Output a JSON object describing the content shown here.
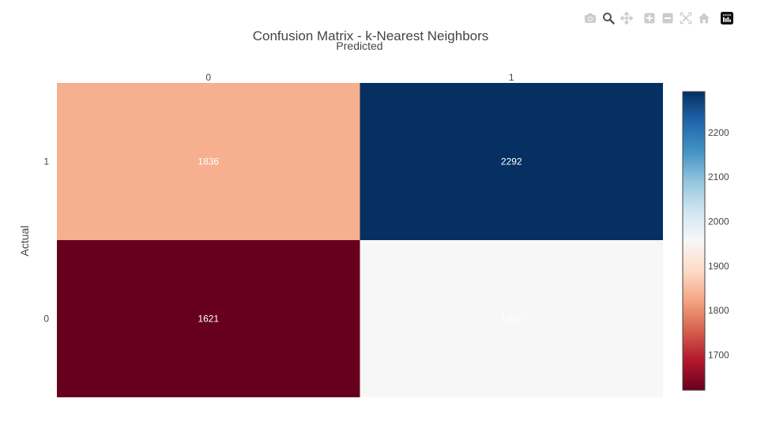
{
  "modebar": {
    "buttons": [
      {
        "name": "camera-icon"
      },
      {
        "name": "zoom-icon"
      },
      {
        "name": "pan-icon"
      },
      {
        "name": "zoom-in-icon"
      },
      {
        "name": "zoom-out-icon"
      },
      {
        "name": "autoscale-icon"
      },
      {
        "name": "reset-axes-icon"
      }
    ],
    "logo": "plotly-logo-icon"
  },
  "chart_data": {
    "type": "heatmap",
    "title": "Confusion Matrix - k-Nearest Neighbors",
    "xlabel": "Predicted",
    "ylabel": "Actual",
    "x": [
      "0",
      "1"
    ],
    "y": [
      "1",
      "0"
    ],
    "z": [
      [
        1836,
        2292
      ],
      [
        1621,
        1957
      ]
    ],
    "colorscale": "RdBu",
    "zmin": 1621,
    "zmax": 2292,
    "colorbar_ticks": [
      1700,
      1800,
      1900,
      2000,
      2100,
      2200
    ],
    "colorbar_tick_labels": [
      "1700",
      "1800",
      "1900",
      "2000",
      "2100",
      "2200"
    ],
    "x_axis_side": "top",
    "grid": false,
    "legend": "colorbar-right",
    "cell_text_color": "#ffffff"
  }
}
